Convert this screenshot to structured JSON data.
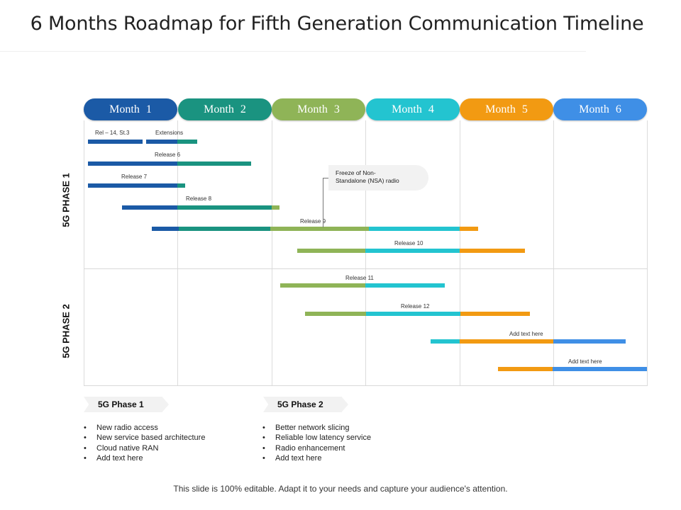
{
  "title": "6 Months Roadmap for Fifth Generation Communication Timeline",
  "months": [
    {
      "label": "Month  1",
      "color": "#1b5aa6"
    },
    {
      "label": "Month  2",
      "color": "#1a9380"
    },
    {
      "label": "Month  3",
      "color": "#8fb457"
    },
    {
      "label": "Month  4",
      "color": "#23c4d0"
    },
    {
      "label": "Month  5",
      "color": "#f29a12"
    },
    {
      "label": "Month  6",
      "color": "#3f8fe6"
    }
  ],
  "phases": {
    "phase1": "5G PHASE 1",
    "phase2": "5G PHASE 2"
  },
  "bar_labels": {
    "rel14": "Rel – 14, St.3",
    "extensions": "Extensions",
    "release6": "Release 6",
    "release7": "Release 7",
    "release8": "Release 8",
    "release9": "Release 9",
    "release10": "Release 10",
    "release11": "Release 11",
    "release12": "Release 12",
    "add_text_1": "Add text here",
    "add_text_2": "Add text here"
  },
  "callout": {
    "line1": "Freeze of Non-",
    "line2": "Standalone (NSA) radio"
  },
  "summary": {
    "phase1": {
      "title": "5G Phase 1",
      "bullets": [
        "New radio access",
        "New service based architecture",
        "Cloud native RAN",
        "Add text here"
      ]
    },
    "phase2": {
      "title": "5G Phase 2",
      "bullets": [
        "Better network slicing",
        "Reliable low latency service",
        "Radio enhancement",
        "Add text here"
      ]
    }
  },
  "footer": "This slide is 100% editable. Adapt it to your needs and capture your audience's attention."
}
